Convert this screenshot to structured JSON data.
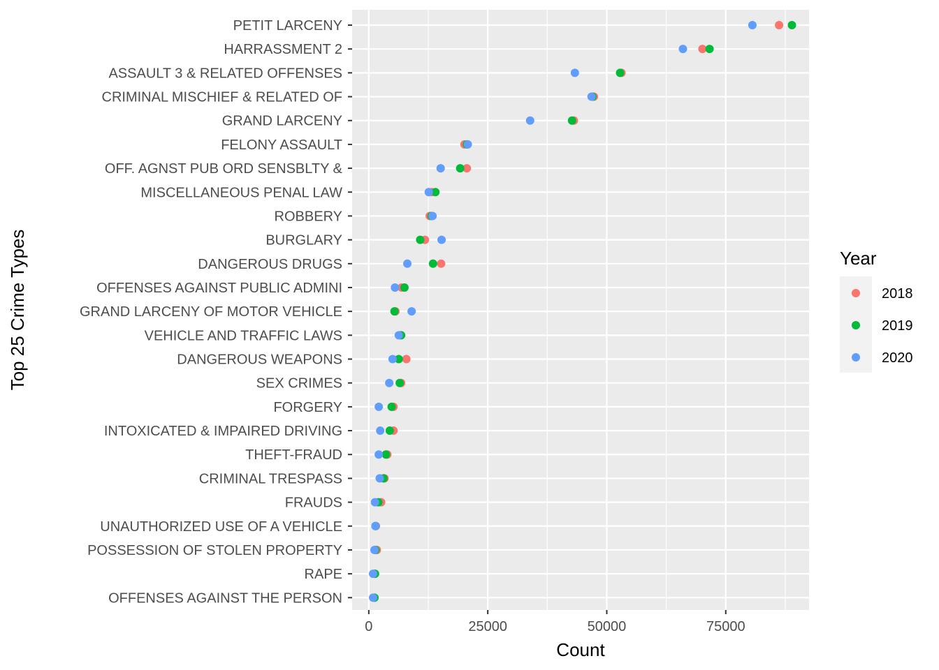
{
  "chart_data": {
    "type": "scatter",
    "xlabel": "Count",
    "ylabel": "Top 25 Crime Types",
    "xlim": [
      -3500,
      92500
    ],
    "x_ticks": [
      0,
      25000,
      50000,
      75000
    ],
    "x_tick_labels": [
      "0",
      "25000",
      "50000",
      "75000"
    ],
    "grid": true,
    "legend": {
      "title": "Year",
      "position": "right"
    },
    "categories": [
      "PETIT LARCENY",
      "HARRASSMENT 2",
      "ASSAULT 3 & RELATED OFFENSES",
      "CRIMINAL MISCHIEF & RELATED OF",
      "GRAND LARCENY",
      "FELONY ASSAULT",
      "OFF. AGNST PUB ORD SENSBLTY &",
      "MISCELLANEOUS PENAL LAW",
      "ROBBERY",
      "BURGLARY",
      "DANGEROUS DRUGS",
      "OFFENSES AGAINST PUBLIC ADMINI",
      "GRAND LARCENY OF MOTOR VEHICLE",
      "VEHICLE AND TRAFFIC LAWS",
      "DANGEROUS WEAPONS",
      "SEX CRIMES",
      "FORGERY",
      "INTOXICATED & IMPAIRED DRIVING",
      "THEFT-FRAUD",
      "CRIMINAL TRESPASS",
      "FRAUDS",
      "UNAUTHORIZED USE OF A VEHICLE",
      "POSSESSION OF STOLEN PROPERTY",
      "RAPE",
      "OFFENSES AGAINST THE PERSON"
    ],
    "series": [
      {
        "name": "2018",
        "color": "#F8766D",
        "values": [
          86200,
          70100,
          53100,
          47300,
          43100,
          20100,
          20600,
          13200,
          12800,
          11800,
          15200,
          6900,
          5600,
          6600,
          7900,
          6800,
          5200,
          5200,
          3900,
          3300,
          2600,
          1500,
          1700,
          1300,
          1100
        ]
      },
      {
        "name": "2019",
        "color": "#00BA38",
        "values": [
          88900,
          71600,
          52800,
          47000,
          42700,
          20600,
          19200,
          14000,
          13200,
          10800,
          13500,
          7500,
          5400,
          6800,
          6300,
          6500,
          4800,
          4400,
          3600,
          3100,
          2000,
          1400,
          1400,
          1300,
          1200
        ]
      },
      {
        "name": "2020",
        "color": "#619CFF",
        "values": [
          80600,
          66000,
          43300,
          46800,
          33900,
          20800,
          15100,
          12600,
          13400,
          15300,
          8100,
          5500,
          9000,
          6300,
          5000,
          4300,
          2100,
          2400,
          2100,
          2300,
          1300,
          1400,
          1200,
          900,
          900
        ]
      }
    ]
  }
}
